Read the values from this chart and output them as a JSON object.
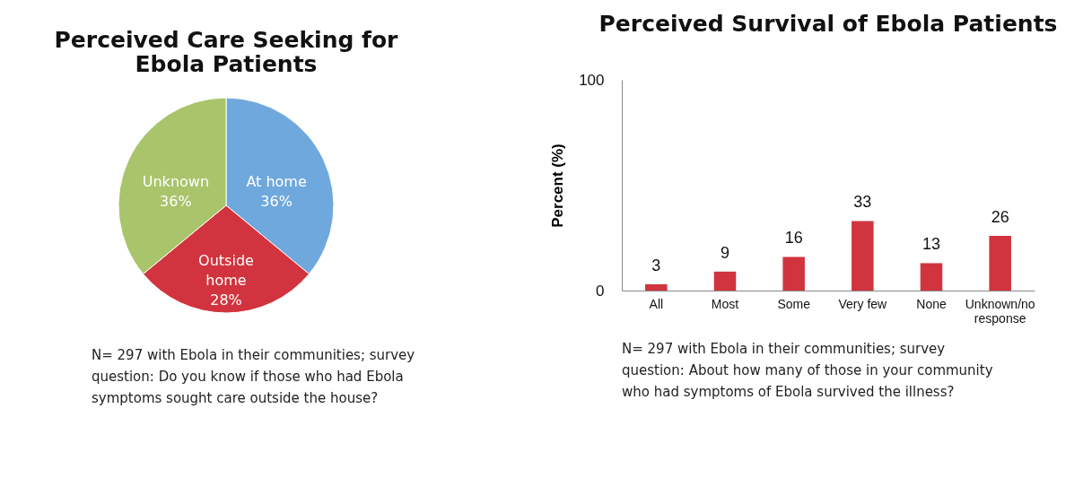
{
  "chart_data": [
    {
      "type": "pie",
      "title": "Perceived Care Seeking for Ebola Patients",
      "categories": [
        "At home",
        "Outside home",
        "Unknown"
      ],
      "values": [
        36,
        28,
        36
      ],
      "colors": [
        "#6fa8dc",
        "#d1343e",
        "#a9c46a"
      ],
      "value_labels": [
        "36%",
        "28%",
        "36%"
      ],
      "legend": false,
      "annotations": [
        "N= 297 with Ebola in their communities; survey question: Do you know if those who had Ebola symptoms sought care outside the house?"
      ]
    },
    {
      "type": "bar",
      "title": "Perceived Survival of Ebola Patients",
      "categories": [
        "All",
        "Most",
        "Some",
        "Very few",
        "None",
        "Unknown/no response"
      ],
      "values": [
        3,
        9,
        16,
        33,
        13,
        26
      ],
      "color": "#d1343e",
      "ylabel": "Percent (%)",
      "ylim": [
        0,
        100
      ],
      "yticks": [
        0,
        100
      ],
      "data_labels": true,
      "grid": false,
      "annotations": [
        "N= 297 with Ebola in their communities; survey question: About how many of those in your community who had symptoms of Ebola survived the illness?"
      ]
    }
  ]
}
